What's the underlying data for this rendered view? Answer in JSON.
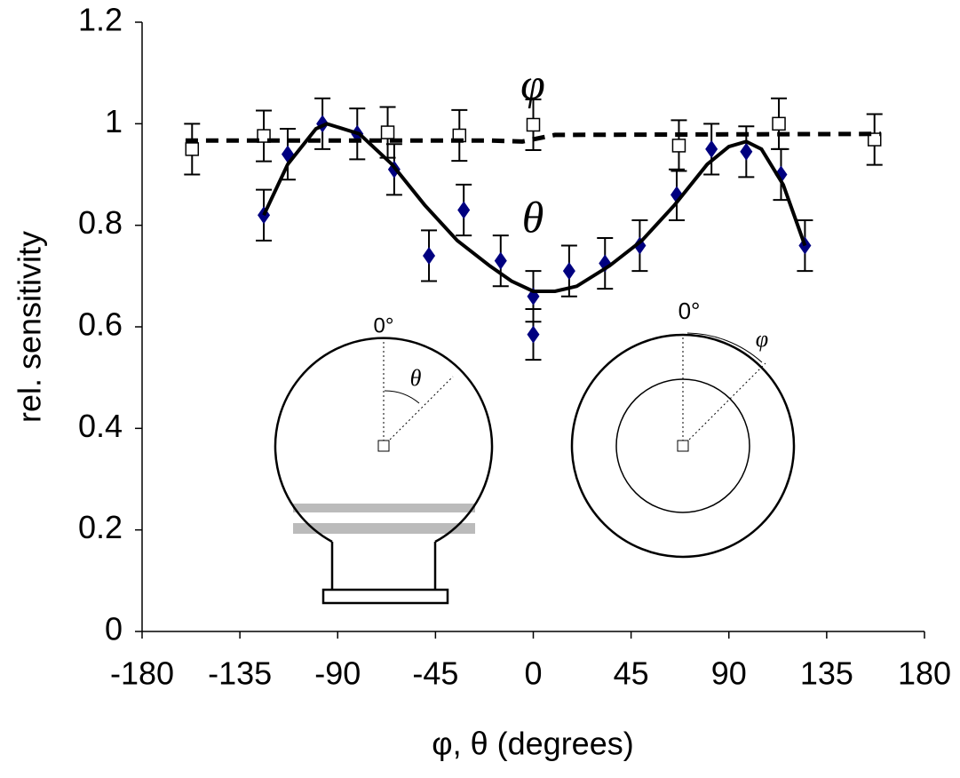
{
  "chart_data": {
    "type": "scatter",
    "xlabel": "φ, θ (degrees)",
    "ylabel": "rel. sensitivity",
    "xlim": [
      -180,
      180
    ],
    "xticks": [
      -180,
      -135,
      -90,
      -45,
      0,
      45,
      90,
      135,
      180
    ],
    "ylim": [
      0,
      1.2
    ],
    "yticks": [
      0,
      0.2,
      0.4,
      0.6,
      0.8,
      1,
      1.2
    ],
    "series": [
      {
        "marker": "diamond",
        "color": "#000080",
        "x": [
          -124,
          -113,
          -97,
          -81,
          -64,
          -48,
          -32,
          -15,
          0,
          0,
          16.5,
          33,
          49,
          66,
          82,
          98,
          114,
          125
        ],
        "values": [
          0.82,
          0.94,
          1.0,
          0.98,
          0.91,
          0.74,
          0.83,
          0.73,
          0.66,
          0.585,
          0.71,
          0.725,
          0.76,
          0.86,
          0.95,
          0.945,
          0.9,
          0.76
        ],
        "errors": [
          0.05,
          0.05,
          0.05,
          0.05,
          0.05,
          0.05,
          0.05,
          0.05,
          0.05,
          0.05,
          0.05,
          0.05,
          0.05,
          0.05,
          0.05,
          0.05,
          0.05,
          0.05
        ]
      },
      {
        "marker": "square",
        "color": "#000000",
        "x": [
          -157,
          -124,
          -67,
          -34,
          0,
          67,
          113,
          157
        ],
        "values": [
          0.95,
          0.976,
          0.983,
          0.977,
          0.998,
          0.957,
          1.0,
          0.969
        ],
        "errors": [
          0.05,
          0.05,
          0.05,
          0.05,
          0.05,
          0.05,
          0.05,
          0.05
        ]
      },
      {
        "marker": "line",
        "style": "solid",
        "color": "#000000",
        "x": [
          -124,
          -113,
          -100,
          -95,
          -80,
          -65,
          -50,
          -35,
          -20,
          -10,
          0,
          10,
          20,
          35,
          50,
          65,
          80,
          90,
          98,
          105,
          115,
          125
        ],
        "values": [
          0.82,
          0.92,
          0.99,
          1.0,
          0.98,
          0.92,
          0.84,
          0.77,
          0.72,
          0.69,
          0.67,
          0.67,
          0.68,
          0.72,
          0.77,
          0.84,
          0.92,
          0.955,
          0.965,
          0.95,
          0.88,
          0.76
        ]
      },
      {
        "marker": "line",
        "style": "dashed",
        "color": "#000000",
        "x": [
          -160,
          -20,
          -5,
          10,
          160
        ],
        "values": [
          0.967,
          0.967,
          0.965,
          0.978,
          0.98
        ]
      }
    ],
    "annotations": [
      "φ",
      "θ",
      "0°",
      "θ",
      "0°",
      "φ"
    ]
  }
}
